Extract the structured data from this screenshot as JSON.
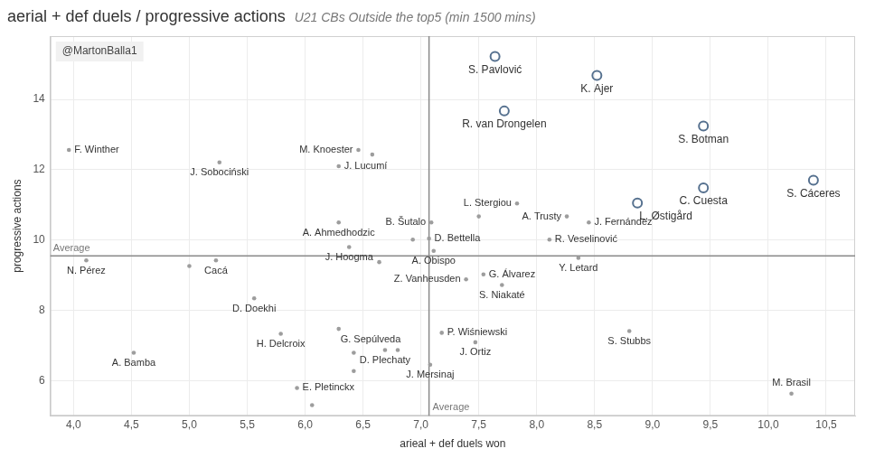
{
  "chart_data": {
    "type": "scatter",
    "title": "aerial + def duels / progressive actions",
    "subtitle": "U21 CBs Outside the top5 (min 1500 mins)",
    "credit": "@MartonBalla1",
    "x_label": "arieal + def duels won",
    "y_label": "progressive actions",
    "xlim": [
      3.8,
      10.75
    ],
    "ylim": [
      5,
      15.8
    ],
    "xticks": [
      {
        "value": 4,
        "label": "4,0"
      },
      {
        "value": 4.5,
        "label": "4,5"
      },
      {
        "value": 5,
        "label": "5,0"
      },
      {
        "value": 5.5,
        "label": "5,5"
      },
      {
        "value": 6,
        "label": "6,0"
      },
      {
        "value": 6.5,
        "label": "6,5"
      },
      {
        "value": 7,
        "label": "7,0"
      },
      {
        "value": 7.5,
        "label": "7,5"
      },
      {
        "value": 8,
        "label": "8,0"
      },
      {
        "value": 8.5,
        "label": "8,5"
      },
      {
        "value": 9,
        "label": "9,0"
      },
      {
        "value": 9.5,
        "label": "9,5"
      },
      {
        "value": 10,
        "label": "10,0"
      },
      {
        "value": 10.5,
        "label": "10,5"
      }
    ],
    "yticks": [
      6,
      8,
      10,
      12,
      14
    ],
    "grid": true,
    "reference_lines": [
      {
        "axis": "x",
        "value": 7.07,
        "label": "Average"
      },
      {
        "axis": "y",
        "value": 9.55,
        "label": "Average"
      }
    ],
    "series": [
      {
        "color": "#56718f",
        "marker": "open_circle",
        "x": [
          7.64,
          8.52,
          7.72,
          9.44,
          9.44,
          10.39,
          8.87
        ],
        "y": [
          15.22,
          14.68,
          13.67,
          13.24,
          11.48,
          11.7,
          11.05
        ],
        "labels": [
          "S. Pavlović",
          "K. Ajer",
          "R. van Drongelen",
          "S. Botman",
          "C. Cuesta",
          "S. Cáceres",
          "L. Østigård"
        ]
      },
      {
        "color": "#9d9d9d",
        "marker": "dot",
        "x": [
          3.96,
          5.26,
          6.46,
          6.58,
          6.29,
          7.83,
          7.5,
          8.26,
          8.45,
          6.29,
          7.09,
          7.07,
          6.93,
          7.11,
          6.38,
          6.64,
          8.11,
          8.36,
          4.11,
          5.23,
          5.0,
          7.39,
          7.54,
          7.7,
          5.56,
          6.29,
          7.18,
          7.47,
          8.8,
          5.79,
          4.52,
          6.42,
          6.69,
          6.8,
          6.42,
          7.08,
          5.93,
          6.06,
          10.2
        ],
        "y": [
          12.56,
          12.21,
          12.56,
          12.43,
          12.1,
          11.04,
          10.67,
          10.67,
          10.5,
          10.5,
          10.5,
          10.04,
          10.01,
          9.69,
          9.8,
          9.37,
          10.01,
          9.49,
          9.42,
          9.42,
          9.26,
          8.88,
          9.02,
          8.72,
          8.34,
          7.47,
          7.36,
          7.09,
          7.41,
          7.33,
          6.79,
          6.79,
          6.87,
          6.87,
          6.27,
          6.45,
          5.79,
          5.3,
          5.63
        ],
        "labels": [
          "F. Winther",
          "J. Sobociński",
          "M. Knoester",
          null,
          "J. Lucumí",
          "L. Stergiou",
          null,
          "A. Trusty",
          "J. Fernández",
          "A. Ahmedhodzic",
          "B. Šutalo",
          "D. Bettella",
          null,
          "A. Obispo",
          "J. Hoogma",
          null,
          "R. Veselinović",
          "Y. Letard",
          "N. Pérez",
          "Cacá",
          null,
          "Z. Vanheusden",
          "G. Álvarez",
          "S. Niakaté",
          "D. Doekhi",
          "G. Sepúlveda",
          "P. Wiśniewski",
          "J. Ortiz",
          "S. Stubbs",
          "H. Delcroix",
          "A. Bamba",
          null,
          "D. Plechaty",
          null,
          null,
          "J. Mersinaj",
          "E. Pletinckx",
          null,
          "M. Brasil"
        ]
      }
    ]
  }
}
